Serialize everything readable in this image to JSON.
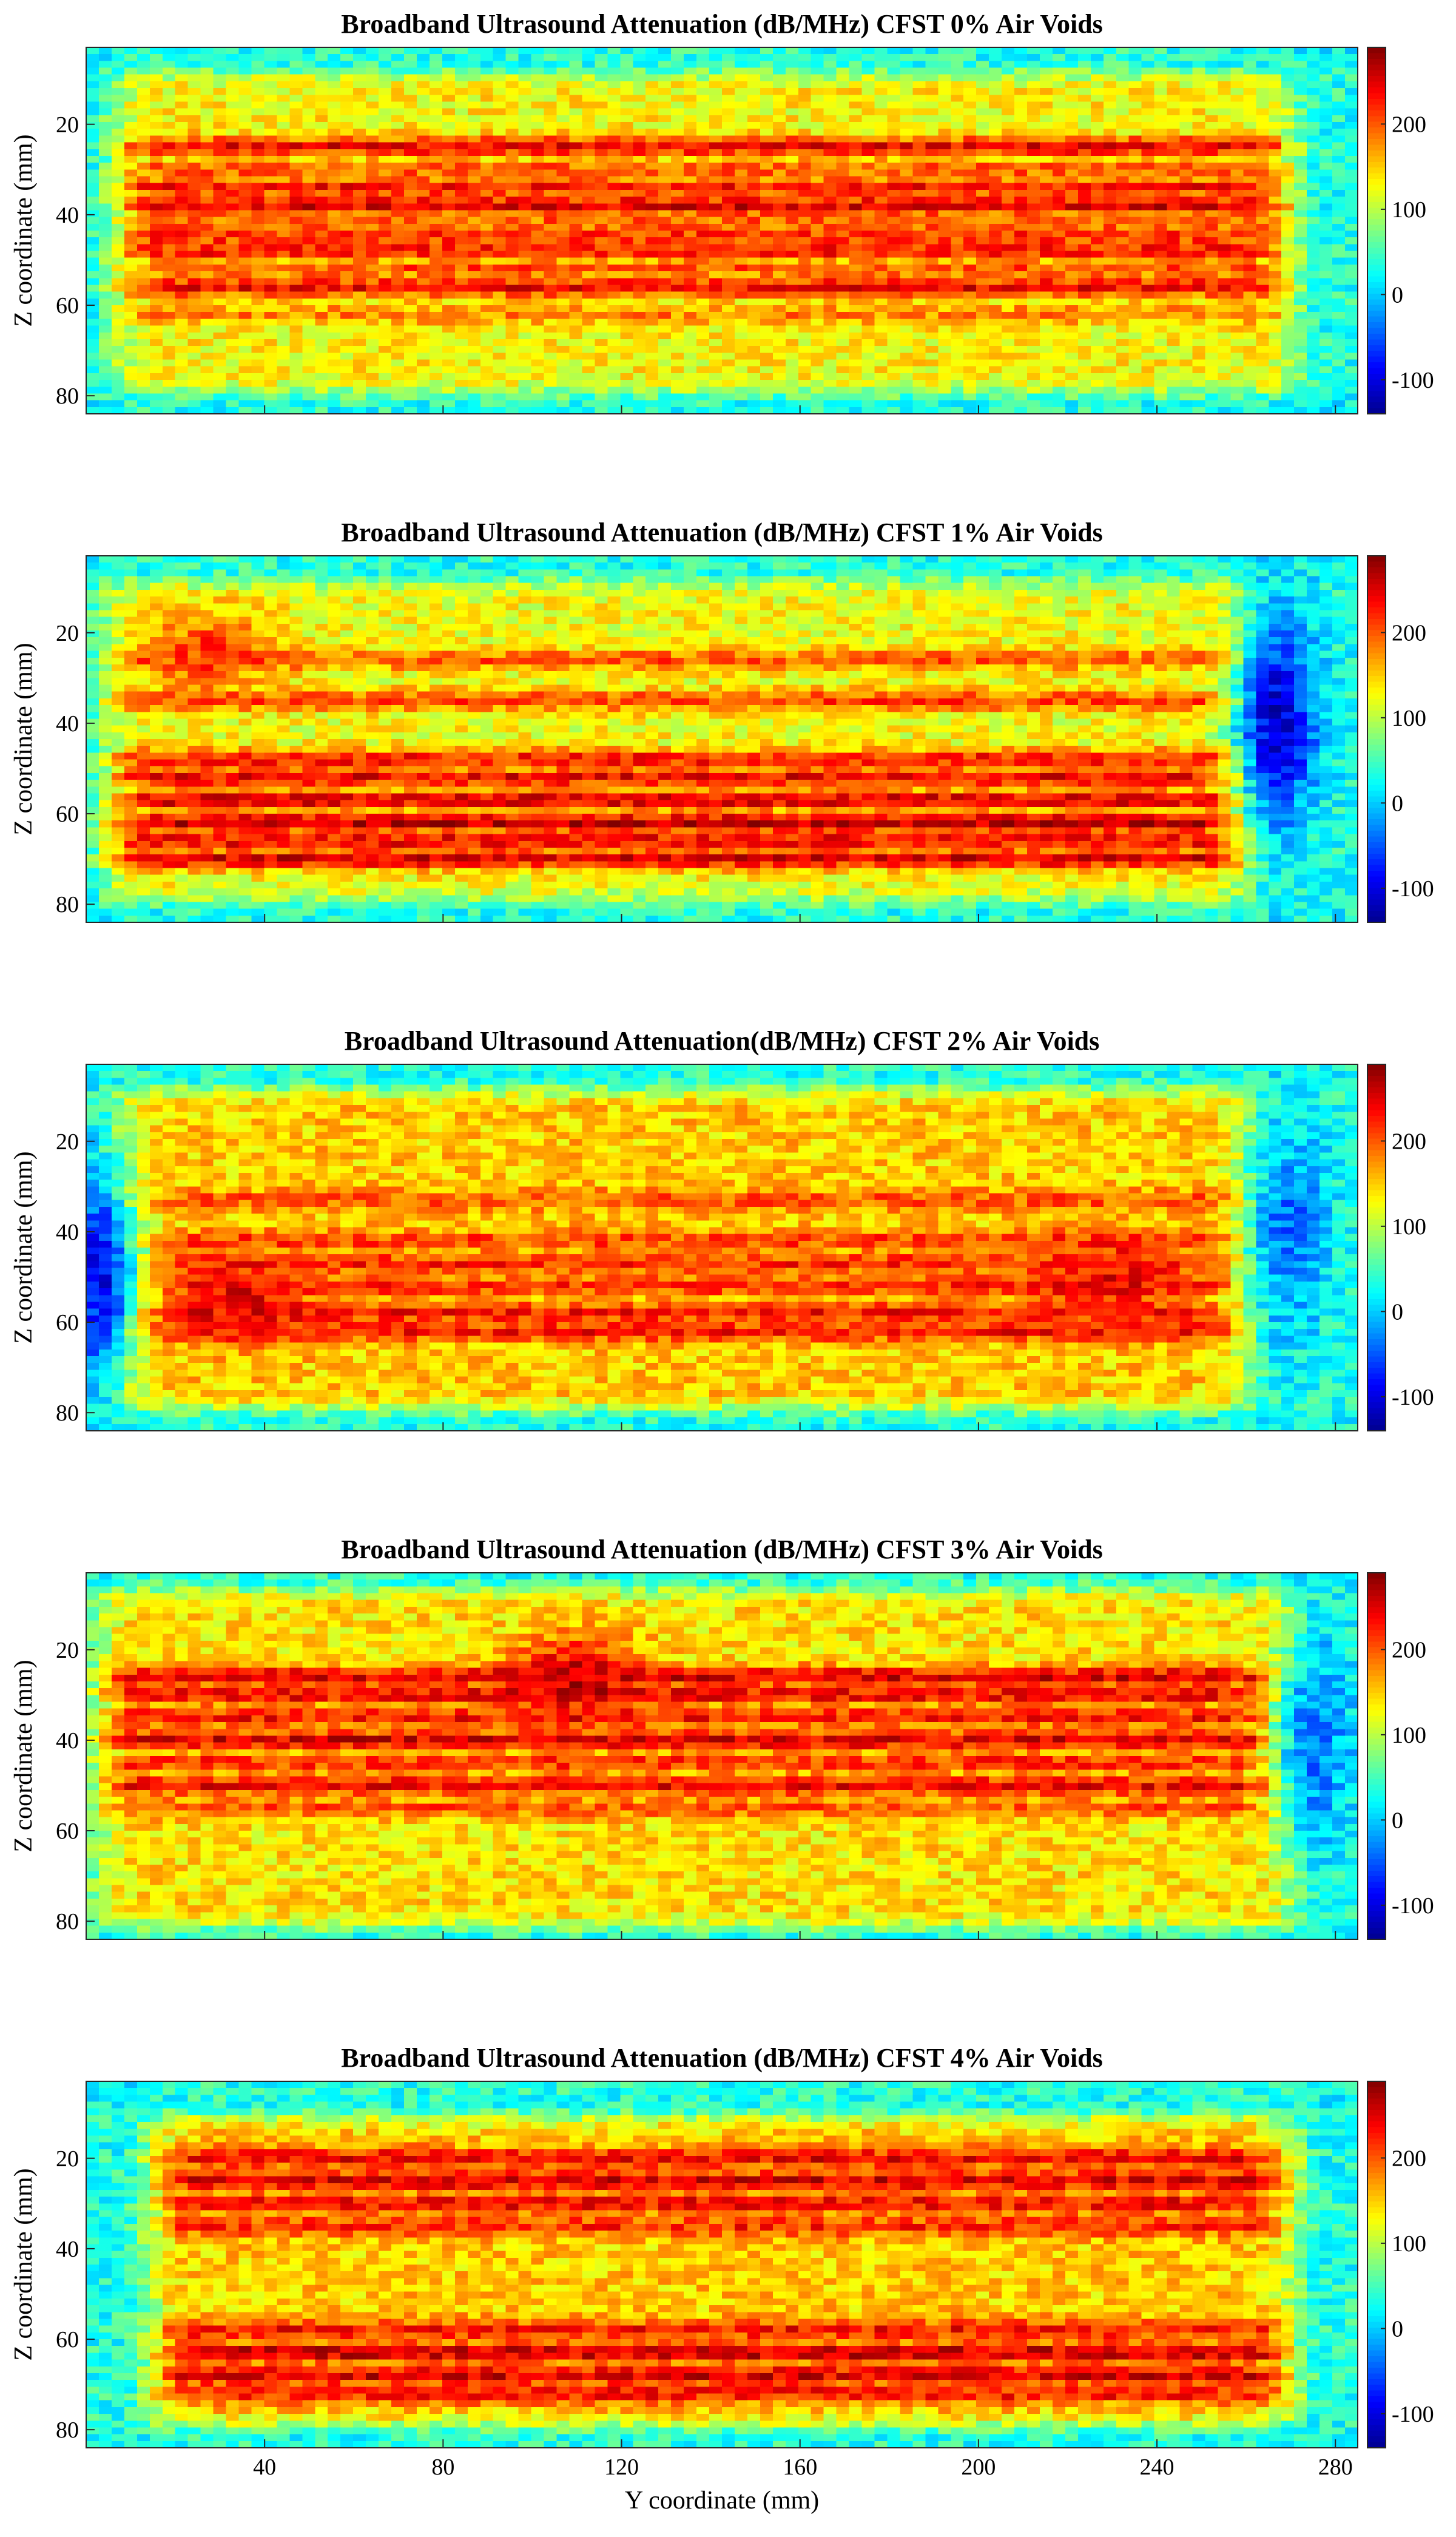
{
  "figure": {
    "xlabel": "Y coordinate (mm)"
  },
  "colormap": {
    "name": "jet",
    "stops": [
      "#00008f",
      "#0000ff",
      "#0080ff",
      "#00ffff",
      "#80ff80",
      "#ffff00",
      "#ff8000",
      "#ff0000",
      "#800000"
    ]
  },
  "chart_data": [
    {
      "type": "heatmap",
      "title": "Broadband Ultrasound Attenuation (dB/MHz) CFST 0% Air Voids",
      "ylabel": "Z coordinate (mm)",
      "xlabel": "",
      "xlim": [
        0,
        285
      ],
      "ylim": [
        84,
        3
      ],
      "x_ticks": [
        40,
        80,
        120,
        160,
        200,
        240,
        280
      ],
      "x_tick_labels_shown": false,
      "y_ticks": [
        20,
        40,
        60,
        80
      ],
      "colorbar": {
        "range": [
          -140,
          290
        ],
        "ticks": [
          -100,
          0,
          100,
          200
        ]
      },
      "pattern": {
        "bands": [
          {
            "z": 25,
            "v": 240
          },
          {
            "z": 30,
            "v": 200
          },
          {
            "z": 34,
            "v": 230
          },
          {
            "z": 38,
            "v": 250
          },
          {
            "z": 42,
            "v": 200
          },
          {
            "z": 45,
            "v": 220
          },
          {
            "z": 48,
            "v": 230
          },
          {
            "z": 52,
            "v": 200
          },
          {
            "z": 56,
            "v": 240
          },
          {
            "z": 62,
            "v": 180
          }
        ],
        "interior_level": 130,
        "core": {
          "y": [
            12,
            265
          ],
          "z": [
            10,
            78
          ]
        },
        "blobs": [],
        "lows": []
      }
    },
    {
      "type": "heatmap",
      "title": "Broadband Ultrasound Attenuation (dB/MHz) CFST 1% Air Voids",
      "ylabel": "Z coordinate (mm)",
      "xlabel": "",
      "xlim": [
        0,
        285
      ],
      "ylim": [
        84,
        3
      ],
      "x_ticks": [
        40,
        80,
        120,
        160,
        200,
        240,
        280
      ],
      "x_tick_labels_shown": false,
      "y_ticks": [
        20,
        40,
        60,
        80
      ],
      "colorbar": {
        "range": [
          -140,
          290
        ],
        "ticks": [
          -100,
          0,
          100,
          200
        ]
      },
      "pattern": {
        "bands": [
          {
            "z": 26,
            "v": 200
          },
          {
            "z": 35,
            "v": 210
          },
          {
            "z": 48,
            "v": 230
          },
          {
            "z": 52,
            "v": 240
          },
          {
            "z": 57,
            "v": 250
          },
          {
            "z": 62,
            "v": 265
          },
          {
            "z": 66,
            "v": 240
          },
          {
            "z": 70,
            "v": 250
          }
        ],
        "interior_level": 125,
        "core": {
          "y": [
            10,
            255
          ],
          "z": [
            10,
            78
          ]
        },
        "blobs": [
          {
            "y": 28,
            "z": 24,
            "v": 210
          }
        ],
        "lows": [
          {
            "y": 267,
            "z": 40,
            "v": -110
          }
        ]
      }
    },
    {
      "type": "heatmap",
      "title": "Broadband Ultrasound Attenuation(dB/MHz) CFST 2% Air Voids",
      "ylabel": "Z coordinate (mm)",
      "xlabel": "",
      "xlim": [
        0,
        285
      ],
      "ylim": [
        84,
        3
      ],
      "x_ticks": [
        40,
        80,
        120,
        160,
        200,
        240,
        280
      ],
      "x_tick_labels_shown": false,
      "y_ticks": [
        20,
        40,
        60,
        80
      ],
      "colorbar": {
        "range": [
          -140,
          290
        ],
        "ticks": [
          -100,
          0,
          100,
          200
        ]
      },
      "pattern": {
        "bands": [
          {
            "z": 33,
            "v": 200
          },
          {
            "z": 42,
            "v": 210
          },
          {
            "z": 47,
            "v": 220
          },
          {
            "z": 52,
            "v": 220
          },
          {
            "z": 58,
            "v": 230
          },
          {
            "z": 62,
            "v": 230
          }
        ],
        "interior_level": 150,
        "core": {
          "y": [
            12,
            255
          ],
          "z": [
            10,
            78
          ]
        },
        "blobs": [
          {
            "y": 35,
            "z": 55,
            "v": 240
          },
          {
            "y": 230,
            "z": 50,
            "v": 240
          }
        ],
        "lows": [
          {
            "y": 3,
            "z": 50,
            "v": -90
          },
          {
            "y": 270,
            "z": 40,
            "v": -40
          }
        ]
      }
    },
    {
      "type": "heatmap",
      "title": "Broadband Ultrasound Attenuation (dB/MHz) CFST 3% Air Voids",
      "ylabel": "Z coordinate (mm)",
      "xlabel": "",
      "xlim": [
        0,
        285
      ],
      "ylim": [
        84,
        3
      ],
      "x_ticks": [
        40,
        80,
        120,
        160,
        200,
        240,
        280
      ],
      "x_tick_labels_shown": false,
      "y_ticks": [
        20,
        40,
        60,
        80
      ],
      "colorbar": {
        "range": [
          -140,
          290
        ],
        "ticks": [
          -100,
          0,
          100,
          200
        ]
      },
      "pattern": {
        "bands": [
          {
            "z": 26,
            "v": 250
          },
          {
            "z": 30,
            "v": 240
          },
          {
            "z": 35,
            "v": 230
          },
          {
            "z": 40,
            "v": 250
          },
          {
            "z": 45,
            "v": 220
          },
          {
            "z": 50,
            "v": 240
          },
          {
            "z": 55,
            "v": 200
          }
        ],
        "interior_level": 140,
        "core": {
          "y": [
            8,
            265
          ],
          "z": [
            8,
            80
          ]
        },
        "blobs": [
          {
            "y": 110,
            "z": 26,
            "v": 260
          }
        ],
        "lows": [
          {
            "y": 275,
            "z": 40,
            "v": -40
          }
        ]
      }
    },
    {
      "type": "heatmap",
      "title": "Broadband Ultrasound Attenuation (dB/MHz) CFST 4% Air Voids",
      "ylabel": "Z coordinate (mm)",
      "xlabel": "Y coordinate (mm)",
      "xlim": [
        0,
        285
      ],
      "ylim": [
        84,
        3
      ],
      "x_ticks": [
        40,
        80,
        120,
        160,
        200,
        240,
        280
      ],
      "x_tick_labels_shown": true,
      "y_ticks": [
        20,
        40,
        60,
        80
      ],
      "colorbar": {
        "range": [
          -140,
          290
        ],
        "ticks": [
          -100,
          0,
          100,
          200
        ]
      },
      "pattern": {
        "bands": [
          {
            "z": 20,
            "v": 240
          },
          {
            "z": 25,
            "v": 250
          },
          {
            "z": 30,
            "v": 240
          },
          {
            "z": 35,
            "v": 220
          },
          {
            "z": 58,
            "v": 230
          },
          {
            "z": 63,
            "v": 260
          },
          {
            "z": 68,
            "v": 250
          },
          {
            "z": 72,
            "v": 230
          }
        ],
        "interior_level": 150,
        "core": {
          "y": [
            20,
            265
          ],
          "z": [
            12,
            78
          ]
        },
        "blobs": [],
        "lows": []
      }
    }
  ]
}
